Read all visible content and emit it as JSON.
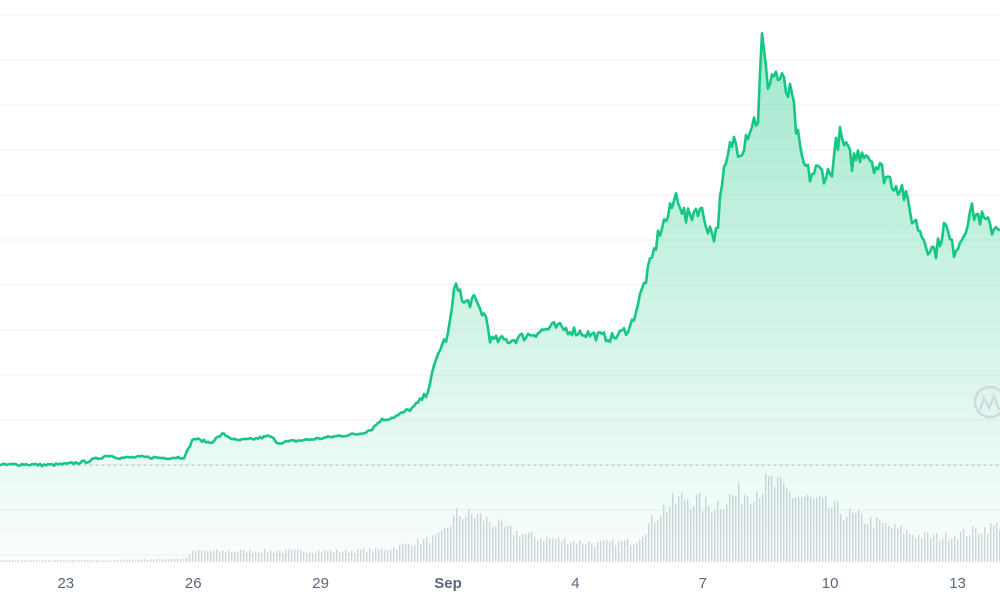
{
  "chart_data": {
    "type": "area",
    "title": "",
    "xlabel": "",
    "ylabel": "",
    "grid": true,
    "legend": "none",
    "x_tick_labels": [
      "23",
      "26",
      "29",
      "Sep",
      "4",
      "7",
      "10",
      "13"
    ],
    "x_tick_days": [
      0,
      3,
      6,
      9,
      12,
      15,
      18,
      21
    ],
    "x_tick_bold": [
      false,
      false,
      false,
      true,
      false,
      false,
      false,
      false
    ],
    "x_range_days": [
      -1.55,
      22.0
    ],
    "price_range": [
      0,
      100
    ],
    "series": [
      {
        "points": [
          [
            -1.55,
            2.0
          ],
          [
            -1.0,
            2.2
          ],
          [
            -0.5,
            2.0
          ],
          [
            0.0,
            2.2
          ],
          [
            0.5,
            2.8
          ],
          [
            1.0,
            4.2
          ],
          [
            1.3,
            3.6
          ],
          [
            1.8,
            3.8
          ],
          [
            2.3,
            3.6
          ],
          [
            2.8,
            3.8
          ],
          [
            3.0,
            8.0
          ],
          [
            3.4,
            7.0
          ],
          [
            3.7,
            9.0
          ],
          [
            4.0,
            7.5
          ],
          [
            4.4,
            7.8
          ],
          [
            4.8,
            8.5
          ],
          [
            5.0,
            7.0
          ],
          [
            5.5,
            7.5
          ],
          [
            6.0,
            8.0
          ],
          [
            6.4,
            8.5
          ],
          [
            6.9,
            9.0
          ],
          [
            7.2,
            10.0
          ],
          [
            7.4,
            12.0
          ],
          [
            7.8,
            13.0
          ],
          [
            8.2,
            15.0
          ],
          [
            8.5,
            18.0
          ],
          [
            8.8,
            28.0
          ],
          [
            9.0,
            31.0
          ],
          [
            9.2,
            44.0
          ],
          [
            9.35,
            38.0
          ],
          [
            9.6,
            39.0
          ],
          [
            9.9,
            35.0
          ],
          [
            10.0,
            30.0
          ],
          [
            10.5,
            30.0
          ],
          [
            11.0,
            31.5
          ],
          [
            11.5,
            33.0
          ],
          [
            12.0,
            32.0
          ],
          [
            12.5,
            31.0
          ],
          [
            12.9,
            30.5
          ],
          [
            13.3,
            33.0
          ],
          [
            13.6,
            42.0
          ],
          [
            13.8,
            48.0
          ],
          [
            14.0,
            55.0
          ],
          [
            14.2,
            58.0
          ],
          [
            14.4,
            63.0
          ],
          [
            14.6,
            57.0
          ],
          [
            14.9,
            60.0
          ],
          [
            15.1,
            56.0
          ],
          [
            15.3,
            53.0
          ],
          [
            15.5,
            67.0
          ],
          [
            15.7,
            75.0
          ],
          [
            15.9,
            73.0
          ],
          [
            16.1,
            78.0
          ],
          [
            16.3,
            80.0
          ],
          [
            16.4,
            98.0
          ],
          [
            16.5,
            88.0
          ],
          [
            16.7,
            90.0
          ],
          [
            16.9,
            87.0
          ],
          [
            17.1,
            84.0
          ],
          [
            17.3,
            71.0
          ],
          [
            17.5,
            67.0
          ],
          [
            17.7,
            68.0
          ],
          [
            18.0,
            67.0
          ],
          [
            18.2,
            76.0
          ],
          [
            18.5,
            70.0
          ],
          [
            18.8,
            73.0
          ],
          [
            19.1,
            69.0
          ],
          [
            19.4,
            66.0
          ],
          [
            19.7,
            64.0
          ],
          [
            19.9,
            58.0
          ],
          [
            20.1,
            55.0
          ],
          [
            20.3,
            51.0
          ],
          [
            20.5,
            50.0
          ],
          [
            20.7,
            56.0
          ],
          [
            20.9,
            50.0
          ],
          [
            21.1,
            53.0
          ],
          [
            21.3,
            59.0
          ],
          [
            21.6,
            57.0
          ],
          [
            21.8,
            55.0
          ],
          [
            22.0,
            56.0
          ]
        ]
      }
    ],
    "baseline_price": 2.0,
    "volume": {
      "x_days": [
        -1.55,
        1.0,
        2.8,
        3.0,
        6.5,
        7.5,
        8.8,
        9.2,
        9.7,
        10.4,
        11.0,
        12.5,
        13.4,
        14.0,
        14.6,
        15.1,
        15.7,
        16.3,
        16.6,
        16.9,
        17.6,
        18.5,
        19.4,
        20.0,
        20.6,
        21.2,
        22.0
      ],
      "values": [
        2,
        2,
        4,
        13,
        13,
        15,
        30,
        57,
        55,
        38,
        30,
        22,
        25,
        62,
        78,
        66,
        78,
        88,
        94,
        84,
        72,
        55,
        42,
        32,
        30,
        35,
        44
      ],
      "range": [
        0,
        100
      ]
    }
  }
}
